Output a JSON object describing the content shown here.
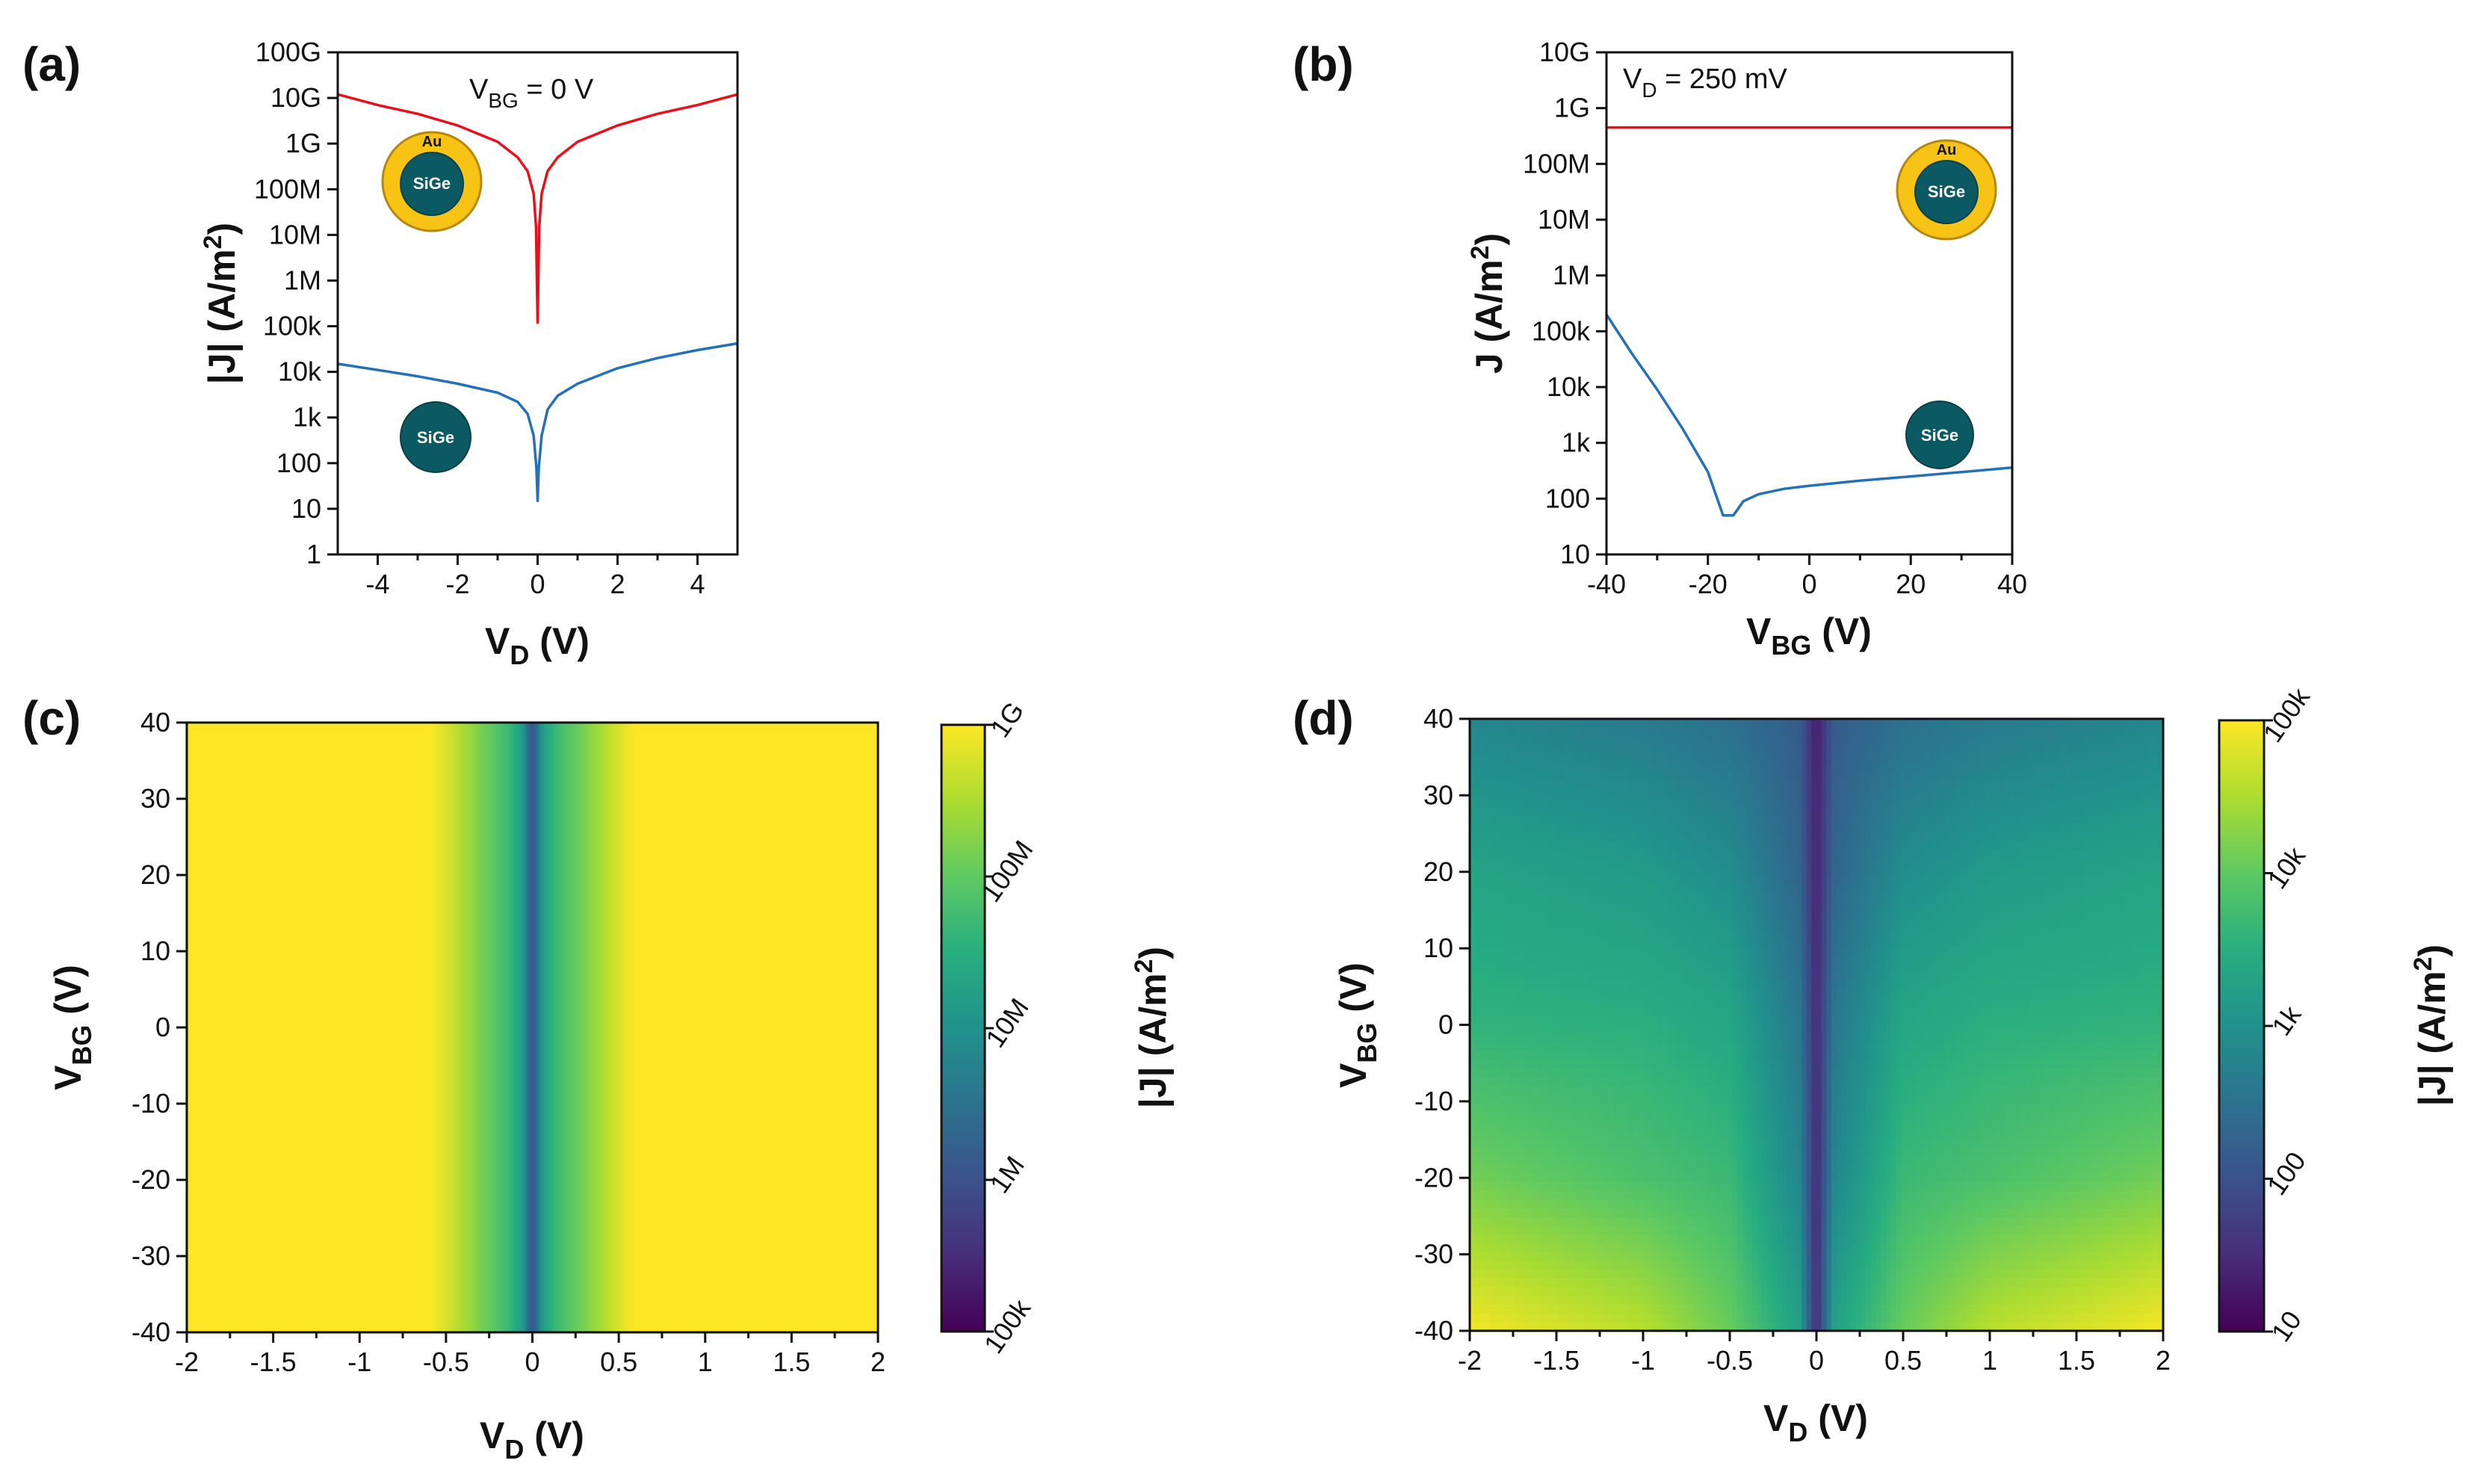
{
  "colors": {
    "red_trace": "#e8111b",
    "blue_trace": "#2471b8",
    "gold": "#f7c415",
    "sige": "#0b5a63"
  },
  "panel_labels": {
    "a": "(a)",
    "b": "(b)",
    "c": "(c)",
    "d": "(d)"
  },
  "insets": {
    "au": "Au",
    "sige": "SiGe"
  },
  "chart_data": [
    {
      "panel": "a",
      "type": "line",
      "title": "",
      "annotation": "V_BG = 0 V",
      "annotation_main": "V",
      "annotation_sub": "BG",
      "annotation_rest": " = 0 V",
      "xlabel_main": "V",
      "xlabel_sub": "D",
      "xlabel_rest": " (V)",
      "ylabel_main": "|J| (A/m",
      "ylabel_sup": "2",
      "ylabel_rest": ")",
      "xlim": [
        -5,
        5
      ],
      "ylim": [
        1,
        100000000000.0
      ],
      "yscale": "log",
      "x_ticks": [
        -4,
        -2,
        0,
        2,
        4
      ],
      "x_tick_labels": [
        "-4",
        "-2",
        "0",
        "2",
        "4"
      ],
      "y_ticks": [
        1,
        10,
        100,
        1000,
        10000,
        100000,
        1000000.0,
        10000000.0,
        100000000.0,
        1000000000.0,
        10000000000.0,
        100000000000.0
      ],
      "y_tick_labels": [
        "1",
        "10",
        "100",
        "1k",
        "10k",
        "100k",
        "1M",
        "10M",
        "100M",
        "1G",
        "10G",
        "100G"
      ],
      "series": [
        {
          "name": "Au/SiGe",
          "color": "#e8111b",
          "x": [
            -5,
            -4,
            -3,
            -2,
            -1,
            -0.5,
            -0.25,
            -0.1,
            -0.04,
            0,
            0.04,
            0.1,
            0.25,
            0.5,
            1,
            2,
            3,
            4,
            5
          ],
          "y": [
            12000000000.0,
            7000000000.0,
            4500000000.0,
            2500000000.0,
            1100000000.0,
            500000000.0,
            250000000.0,
            80000000.0,
            15000000.0,
            120000.0,
            15000000.0,
            80000000.0,
            250000000.0,
            500000000.0,
            1100000000.0,
            2500000000.0,
            4500000000.0,
            7000000000.0,
            12000000000.0
          ]
        },
        {
          "name": "SiGe",
          "color": "#2471b8",
          "x": [
            -5,
            -4,
            -3,
            -2,
            -1,
            -0.5,
            -0.25,
            -0.1,
            -0.03,
            0,
            0.03,
            0.1,
            0.25,
            0.5,
            1,
            2,
            3,
            4,
            5
          ],
          "y": [
            15000,
            11000,
            8000,
            5500,
            3500,
            2200,
            1200,
            400,
            80,
            15,
            80,
            400,
            1500,
            3000,
            5500,
            12000,
            20000,
            30000,
            42000
          ]
        }
      ]
    },
    {
      "panel": "b",
      "type": "line",
      "title": "",
      "annotation": "V_D = 250 mV",
      "annotation_main": "V",
      "annotation_sub": "D",
      "annotation_rest": " = 250 mV",
      "xlabel_main": "V",
      "xlabel_sub": "BG",
      "xlabel_rest": " (V)",
      "ylabel_main": "J (A/m",
      "ylabel_sup": "2",
      "ylabel_rest": ")",
      "xlim": [
        -40,
        40
      ],
      "ylim": [
        10,
        10000000000.0
      ],
      "yscale": "log",
      "x_ticks": [
        -40,
        -20,
        0,
        20,
        40
      ],
      "x_tick_labels": [
        "-40",
        "-20",
        "0",
        "20",
        "40"
      ],
      "y_ticks": [
        10,
        100,
        1000,
        10000,
        100000,
        1000000.0,
        10000000.0,
        100000000.0,
        1000000000.0,
        10000000000.0
      ],
      "y_tick_labels": [
        "10",
        "100",
        "1k",
        "10k",
        "100k",
        "1M",
        "10M",
        "100M",
        "1G",
        "10G"
      ],
      "series": [
        {
          "name": "Au/SiGe",
          "color": "#e8111b",
          "x": [
            -40,
            40
          ],
          "y": [
            450000000.0,
            450000000.0
          ]
        },
        {
          "name": "SiGe",
          "color": "#2471b8",
          "x": [
            -40,
            -35,
            -30,
            -25,
            -20,
            -17,
            -15,
            -13,
            -10,
            -5,
            0,
            10,
            20,
            30,
            40
          ],
          "y": [
            200000,
            40000,
            9000,
            1800,
            300,
            50,
            50,
            90,
            120,
            150,
            170,
            210,
            250,
            300,
            360
          ]
        }
      ]
    },
    {
      "panel": "c",
      "type": "heatmap",
      "title": "",
      "xlabel_main": "V",
      "xlabel_sub": "D",
      "xlabel_rest": " (V)",
      "ylabel_main": "V",
      "ylabel_sub": "BG",
      "ylabel_rest": " (V)",
      "xlim": [
        -2,
        2
      ],
      "ylim": [
        -40,
        40
      ],
      "x_ticks": [
        -2,
        -1.5,
        -1,
        -0.5,
        0,
        0.5,
        1,
        1.5,
        2
      ],
      "x_tick_labels": [
        "-2",
        "-1.5",
        "-1",
        "-0.5",
        "0",
        "0.5",
        "1",
        "1.5",
        "2"
      ],
      "y_ticks": [
        -40,
        -30,
        -20,
        -10,
        0,
        10,
        20,
        30,
        40
      ],
      "y_tick_labels": [
        "-40",
        "-30",
        "-20",
        "-10",
        "0",
        "10",
        "20",
        "30",
        "40"
      ],
      "colorbar": {
        "label_main": "|J| (A/m",
        "label_sup": "2",
        "label_rest": ")",
        "range": [
          100000,
          1000000000.0
        ],
        "ticks": [
          100000,
          1000000.0,
          10000000.0,
          100000000.0,
          1000000000.0
        ],
        "tick_labels": [
          "100k",
          "1M",
          "10M",
          "100M",
          "1G"
        ]
      },
      "profile_vd": [
        -2,
        -0.6,
        -0.5,
        -0.4,
        -0.3,
        -0.2,
        -0.1,
        -0.03,
        0,
        0.03,
        0.1,
        0.2,
        0.3,
        0.4,
        0.5,
        0.6,
        2
      ],
      "profile_j": [
        1000000000.0,
        1000000000.0,
        600000000.0,
        300000000.0,
        150000000.0,
        80000000.0,
        30000000.0,
        3000000.0,
        1000000.0,
        3000000.0,
        30000000.0,
        80000000.0,
        150000000.0,
        300000000.0,
        600000000.0,
        1000000000.0,
        1000000000.0
      ]
    },
    {
      "panel": "d",
      "type": "heatmap",
      "title": "",
      "xlabel_main": "V",
      "xlabel_sub": "D",
      "xlabel_rest": " (V)",
      "ylabel_main": "V",
      "ylabel_sub": "BG",
      "ylabel_rest": " (V)",
      "xlim": [
        -2,
        2
      ],
      "ylim": [
        -40,
        40
      ],
      "x_ticks": [
        -2,
        -1.5,
        -1,
        -0.5,
        0,
        0.5,
        1,
        1.5,
        2
      ],
      "x_tick_labels": [
        "-2",
        "-1.5",
        "-1",
        "-0.5",
        "0",
        "0.5",
        "1",
        "1.5",
        "2"
      ],
      "y_ticks": [
        -40,
        -30,
        -20,
        -10,
        0,
        10,
        20,
        30,
        40
      ],
      "y_tick_labels": [
        "-40",
        "-30",
        "-20",
        "-10",
        "0",
        "10",
        "20",
        "30",
        "40"
      ],
      "colorbar": {
        "label_main": "|J| (A/m",
        "label_sup": "2",
        "label_rest": ")",
        "range": [
          10,
          100000
        ],
        "ticks": [
          10,
          100,
          1000,
          10000,
          100000
        ],
        "tick_labels": [
          "10",
          "100",
          "1k",
          "10k",
          "100k"
        ]
      },
      "grid_vbg": [
        40,
        20,
        0,
        -20,
        -40
      ],
      "grid_vd_abs": [
        0,
        0.1,
        0.5,
        1,
        2
      ],
      "grid_j": [
        [
          20,
          150,
          300,
          450,
          700
        ],
        [
          25,
          200,
          900,
          1500,
          2200
        ],
        [
          30,
          400,
          2500,
          3500,
          4000
        ],
        [
          30,
          700,
          5000,
          7000,
          14000
        ],
        [
          30,
          2000,
          12000,
          40000,
          90000
        ]
      ]
    }
  ]
}
